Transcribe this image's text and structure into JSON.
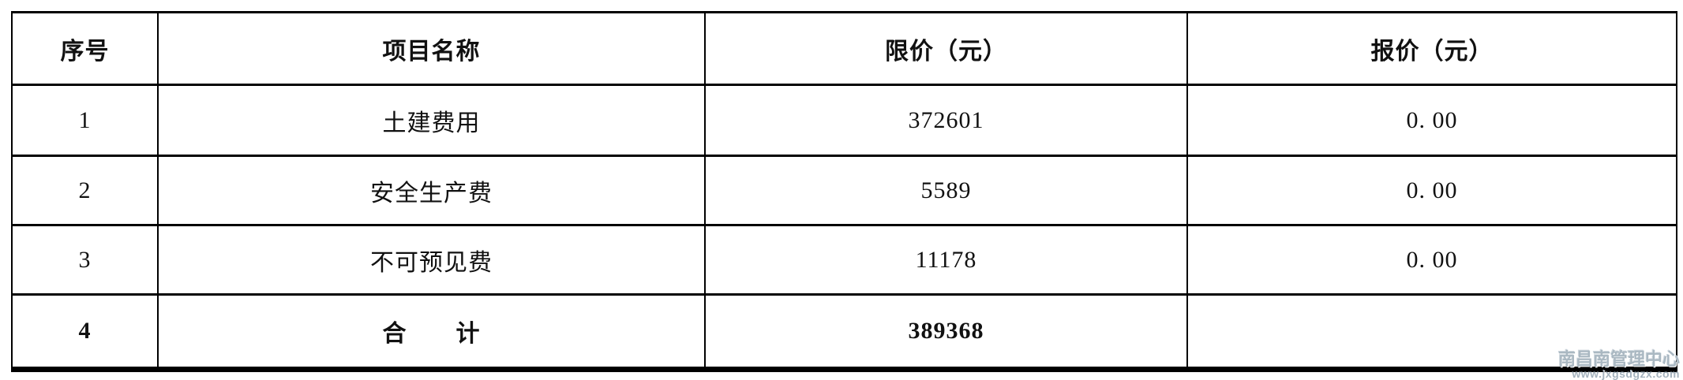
{
  "table": {
    "headers": {
      "no": "序号",
      "name": "项目名称",
      "limit": "限价（元）",
      "quote": "报价（元）"
    },
    "rows": [
      {
        "no": "1",
        "name": "土建费用",
        "limit": "372601",
        "quote": "0. 00"
      },
      {
        "no": "2",
        "name": "安全生产费",
        "limit": "5589",
        "quote": "0. 00"
      },
      {
        "no": "3",
        "name": "不可预见费",
        "limit": "11178",
        "quote": "0. 00"
      },
      {
        "no": "4",
        "name": "合　　计",
        "limit": "389368",
        "quote": ""
      }
    ]
  },
  "watermark": {
    "line1": "南昌南管理中心",
    "line2": "www.jxgsdgzx.com",
    "color": "#aab8c2"
  },
  "colors": {
    "background": "#ffffff",
    "border": "#000000",
    "text": "#111111"
  }
}
